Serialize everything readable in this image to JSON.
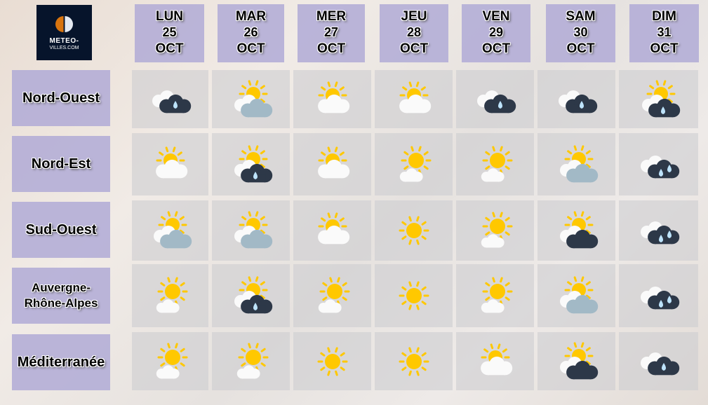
{
  "logo": {
    "line1": "METEO-",
    "line2": "VILLES.COM"
  },
  "days": [
    {
      "name": "LUN",
      "date": "25",
      "month": "OCT"
    },
    {
      "name": "MAR",
      "date": "26",
      "month": "OCT"
    },
    {
      "name": "MER",
      "date": "27",
      "month": "OCT"
    },
    {
      "name": "JEU",
      "date": "28",
      "month": "OCT"
    },
    {
      "name": "VEN",
      "date": "29",
      "month": "OCT"
    },
    {
      "name": "SAM",
      "date": "30",
      "month": "OCT"
    },
    {
      "name": "DIM",
      "date": "31",
      "month": "OCT"
    }
  ],
  "regions": [
    {
      "name": "Nord-Ouest",
      "forecast": [
        "rain",
        "sun-grey-cloud",
        "sun-cloud",
        "sun-cloud",
        "rain",
        "rain",
        "sun-rain"
      ]
    },
    {
      "name": "Nord-Est",
      "forecast": [
        "sun-cloud",
        "sun-rain",
        "sun-cloud",
        "sun-small-cloud",
        "sun-small-cloud",
        "sun-grey-cloud",
        "heavy-rain"
      ]
    },
    {
      "name": "Sud-Ouest",
      "forecast": [
        "sun-grey-cloud",
        "sun-grey-cloud",
        "sun-cloud",
        "sun",
        "sun-small-cloud",
        "sun-dark-cloud",
        "heavy-rain"
      ]
    },
    {
      "name": "Auvergne-Rhône-Alpes",
      "forecast": [
        "sun-small-cloud",
        "sun-rain",
        "sun-small-cloud",
        "sun",
        "sun-small-cloud",
        "sun-grey-cloud",
        "heavy-rain"
      ]
    },
    {
      "name": "Méditerranée",
      "forecast": [
        "sun-small-cloud",
        "sun-small-cloud",
        "sun",
        "sun",
        "sun-cloud",
        "sun-dark-cloud",
        "rain"
      ]
    }
  ],
  "colors": {
    "sun": "#ffc800",
    "cloud_white": "#fafafa",
    "cloud_dark": "#2d3848",
    "cloud_grey": "#a2b9c6",
    "drop": "#bde3fb",
    "header_bg": "#b0aad6",
    "logo_bg": "#06142b"
  }
}
